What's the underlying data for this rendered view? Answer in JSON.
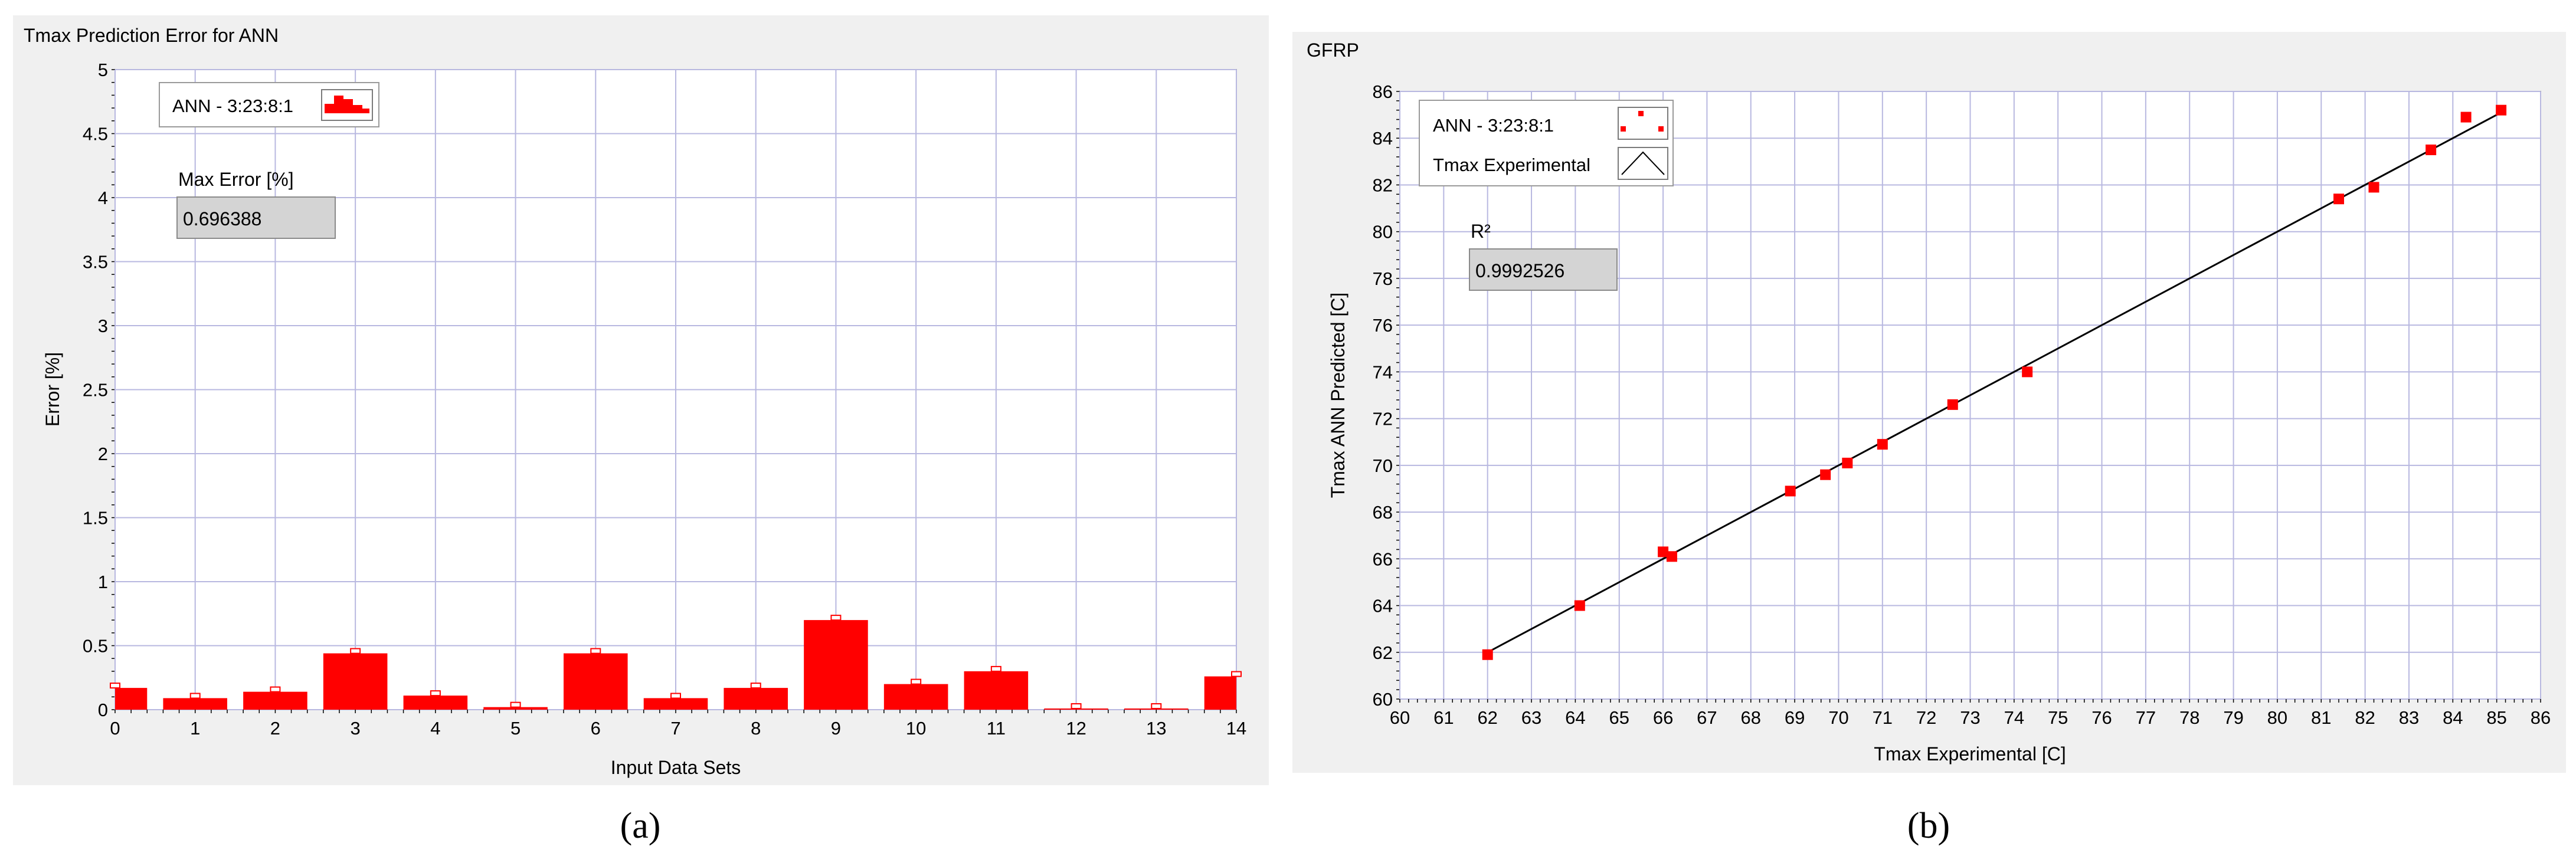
{
  "panels": {
    "a": {
      "caption": "(a)"
    },
    "b": {
      "caption": "(b)"
    }
  },
  "chart_data": [
    {
      "type": "bar",
      "title": "Tmax Prediction Error for ANN",
      "xlabel": "Input Data Sets",
      "ylabel": "Error [%]",
      "xlim": [
        0,
        14
      ],
      "ylim": [
        0,
        5
      ],
      "x_ticks": [
        "0",
        "1",
        "2",
        "3",
        "4",
        "5",
        "6",
        "7",
        "8",
        "9",
        "10",
        "11",
        "12",
        "13",
        "14"
      ],
      "y_ticks": [
        "0",
        "0.5",
        "1",
        "1.5",
        "2",
        "2.5",
        "3",
        "3.5",
        "4",
        "4.5",
        "5"
      ],
      "grid": true,
      "legend": {
        "position": "top-left",
        "entries": [
          "ANN - 3:23:8:1"
        ]
      },
      "indicator": {
        "label": "Max Error [%]",
        "value": "0.696388"
      },
      "colors": {
        "bars": "#ff0000",
        "plot_bg": "#ffffff",
        "grid": "#b8b8e0",
        "frame_bg": "#f0f0f0"
      },
      "series": [
        {
          "name": "ANN - 3:23:8:1",
          "x": [
            0,
            1,
            2,
            3,
            4,
            5,
            6,
            7,
            8,
            9,
            10,
            11,
            12,
            13,
            14
          ],
          "values": [
            0.17,
            0.09,
            0.14,
            0.44,
            0.11,
            0.02,
            0.44,
            0.09,
            0.17,
            0.7,
            0.2,
            0.3,
            0.005,
            0.005,
            0.26
          ]
        }
      ]
    },
    {
      "type": "scatter",
      "title": "GFRP",
      "xlabel": "Tmax Experimental  [C]",
      "ylabel": "Tmax ANN Predicted  [C]",
      "xlim": [
        60,
        86
      ],
      "ylim": [
        60,
        86
      ],
      "x_ticks": [
        "60",
        "61",
        "62",
        "63",
        "64",
        "65",
        "66",
        "67",
        "68",
        "69",
        "70",
        "71",
        "72",
        "73",
        "74",
        "75",
        "76",
        "77",
        "78",
        "79",
        "80",
        "81",
        "82",
        "83",
        "84",
        "85",
        "86"
      ],
      "y_ticks": [
        "60",
        "62",
        "64",
        "66",
        "68",
        "70",
        "72",
        "74",
        "76",
        "78",
        "80",
        "82",
        "84",
        "86"
      ],
      "grid": true,
      "legend": {
        "position": "top-left",
        "entries": [
          "ANN - 3:23:8:1",
          "Tmax Experimental"
        ]
      },
      "indicator": {
        "label": "R²",
        "value": "0.9992526"
      },
      "colors": {
        "points": "#ff0000",
        "line": "#000000",
        "plot_bg": "#ffffff",
        "grid": "#b8b8e0",
        "frame_bg": "#f0f0f0"
      },
      "series": [
        {
          "name": "ANN - 3:23:8:1",
          "x": [
            62.0,
            64.1,
            66.0,
            66.2,
            68.9,
            69.7,
            70.2,
            71.0,
            72.6,
            74.3,
            81.4,
            82.2,
            83.5,
            84.3,
            85.1
          ],
          "y": [
            61.9,
            64.0,
            66.3,
            66.1,
            68.9,
            69.6,
            70.1,
            70.9,
            72.6,
            74.0,
            81.4,
            81.9,
            83.5,
            84.9,
            85.2
          ]
        },
        {
          "name": "Tmax Experimental",
          "x": [
            62.0,
            85.1
          ],
          "y": [
            62.0,
            85.1
          ]
        }
      ]
    }
  ]
}
